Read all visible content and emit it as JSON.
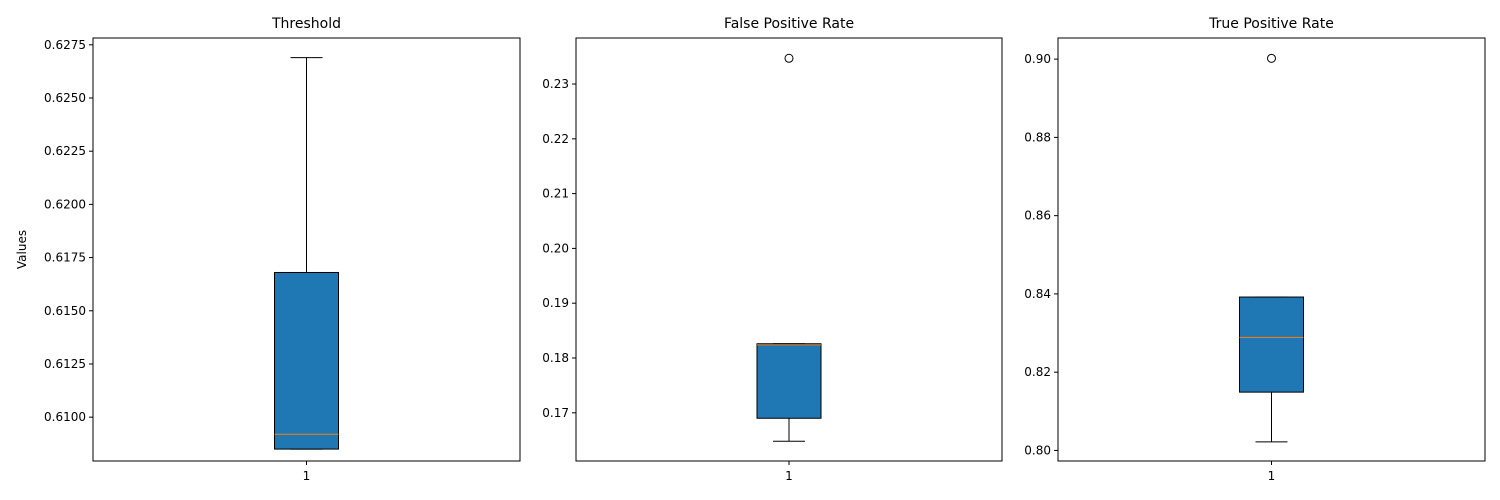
{
  "chart_data": [
    {
      "type": "box",
      "title": "Threshold",
      "xlabel": "",
      "ylabel": "Values",
      "xticks": [
        "1"
      ],
      "ylim": [
        0.60794,
        0.62782
      ],
      "yticks": [
        0.61,
        0.6125,
        0.615,
        0.6175,
        0.62,
        0.6225,
        0.625,
        0.6275
      ],
      "ytick_labels": [
        "0.6100",
        "0.6125",
        "0.6150",
        "0.6175",
        "0.6200",
        "0.6225",
        "0.6250",
        "0.6275"
      ],
      "box": {
        "whisker_low": 0.6085,
        "q1": 0.6085,
        "median": 0.6092,
        "q3": 0.6168,
        "whisker_high": 0.6269,
        "outliers": []
      },
      "fill_color": "#1f77b4",
      "median_color": "#ff7f0e"
    },
    {
      "type": "box",
      "title": "False Positive Rate",
      "xlabel": "",
      "ylabel": "",
      "xticks": [
        "1"
      ],
      "ylim": [
        0.1612,
        0.2384
      ],
      "yticks": [
        0.17,
        0.18,
        0.19,
        0.2,
        0.21,
        0.22,
        0.23
      ],
      "ytick_labels": [
        "0.17",
        "0.18",
        "0.19",
        "0.20",
        "0.21",
        "0.22",
        "0.23"
      ],
      "box": {
        "whisker_low": 0.1648,
        "q1": 0.169,
        "median": 0.1824,
        "q3": 0.1826,
        "whisker_high": 0.1826,
        "outliers": [
          0.2347
        ]
      },
      "fill_color": "#1f77b4",
      "median_color": "#ff7f0e"
    },
    {
      "type": "box",
      "title": "True Positive Rate",
      "xlabel": "",
      "ylabel": "",
      "xticks": [
        "1"
      ],
      "ylim": [
        0.7973,
        0.9054
      ],
      "yticks": [
        0.8,
        0.82,
        0.84,
        0.86,
        0.88,
        0.9
      ],
      "ytick_labels": [
        "0.80",
        "0.82",
        "0.84",
        "0.86",
        "0.88",
        "0.90"
      ],
      "box": {
        "whisker_low": 0.8022,
        "q1": 0.8149,
        "median": 0.8289,
        "q3": 0.8392,
        "whisker_high": 0.8392,
        "outliers": [
          0.9002
        ]
      },
      "fill_color": "#1f77b4",
      "median_color": "#ff7f0e"
    }
  ]
}
